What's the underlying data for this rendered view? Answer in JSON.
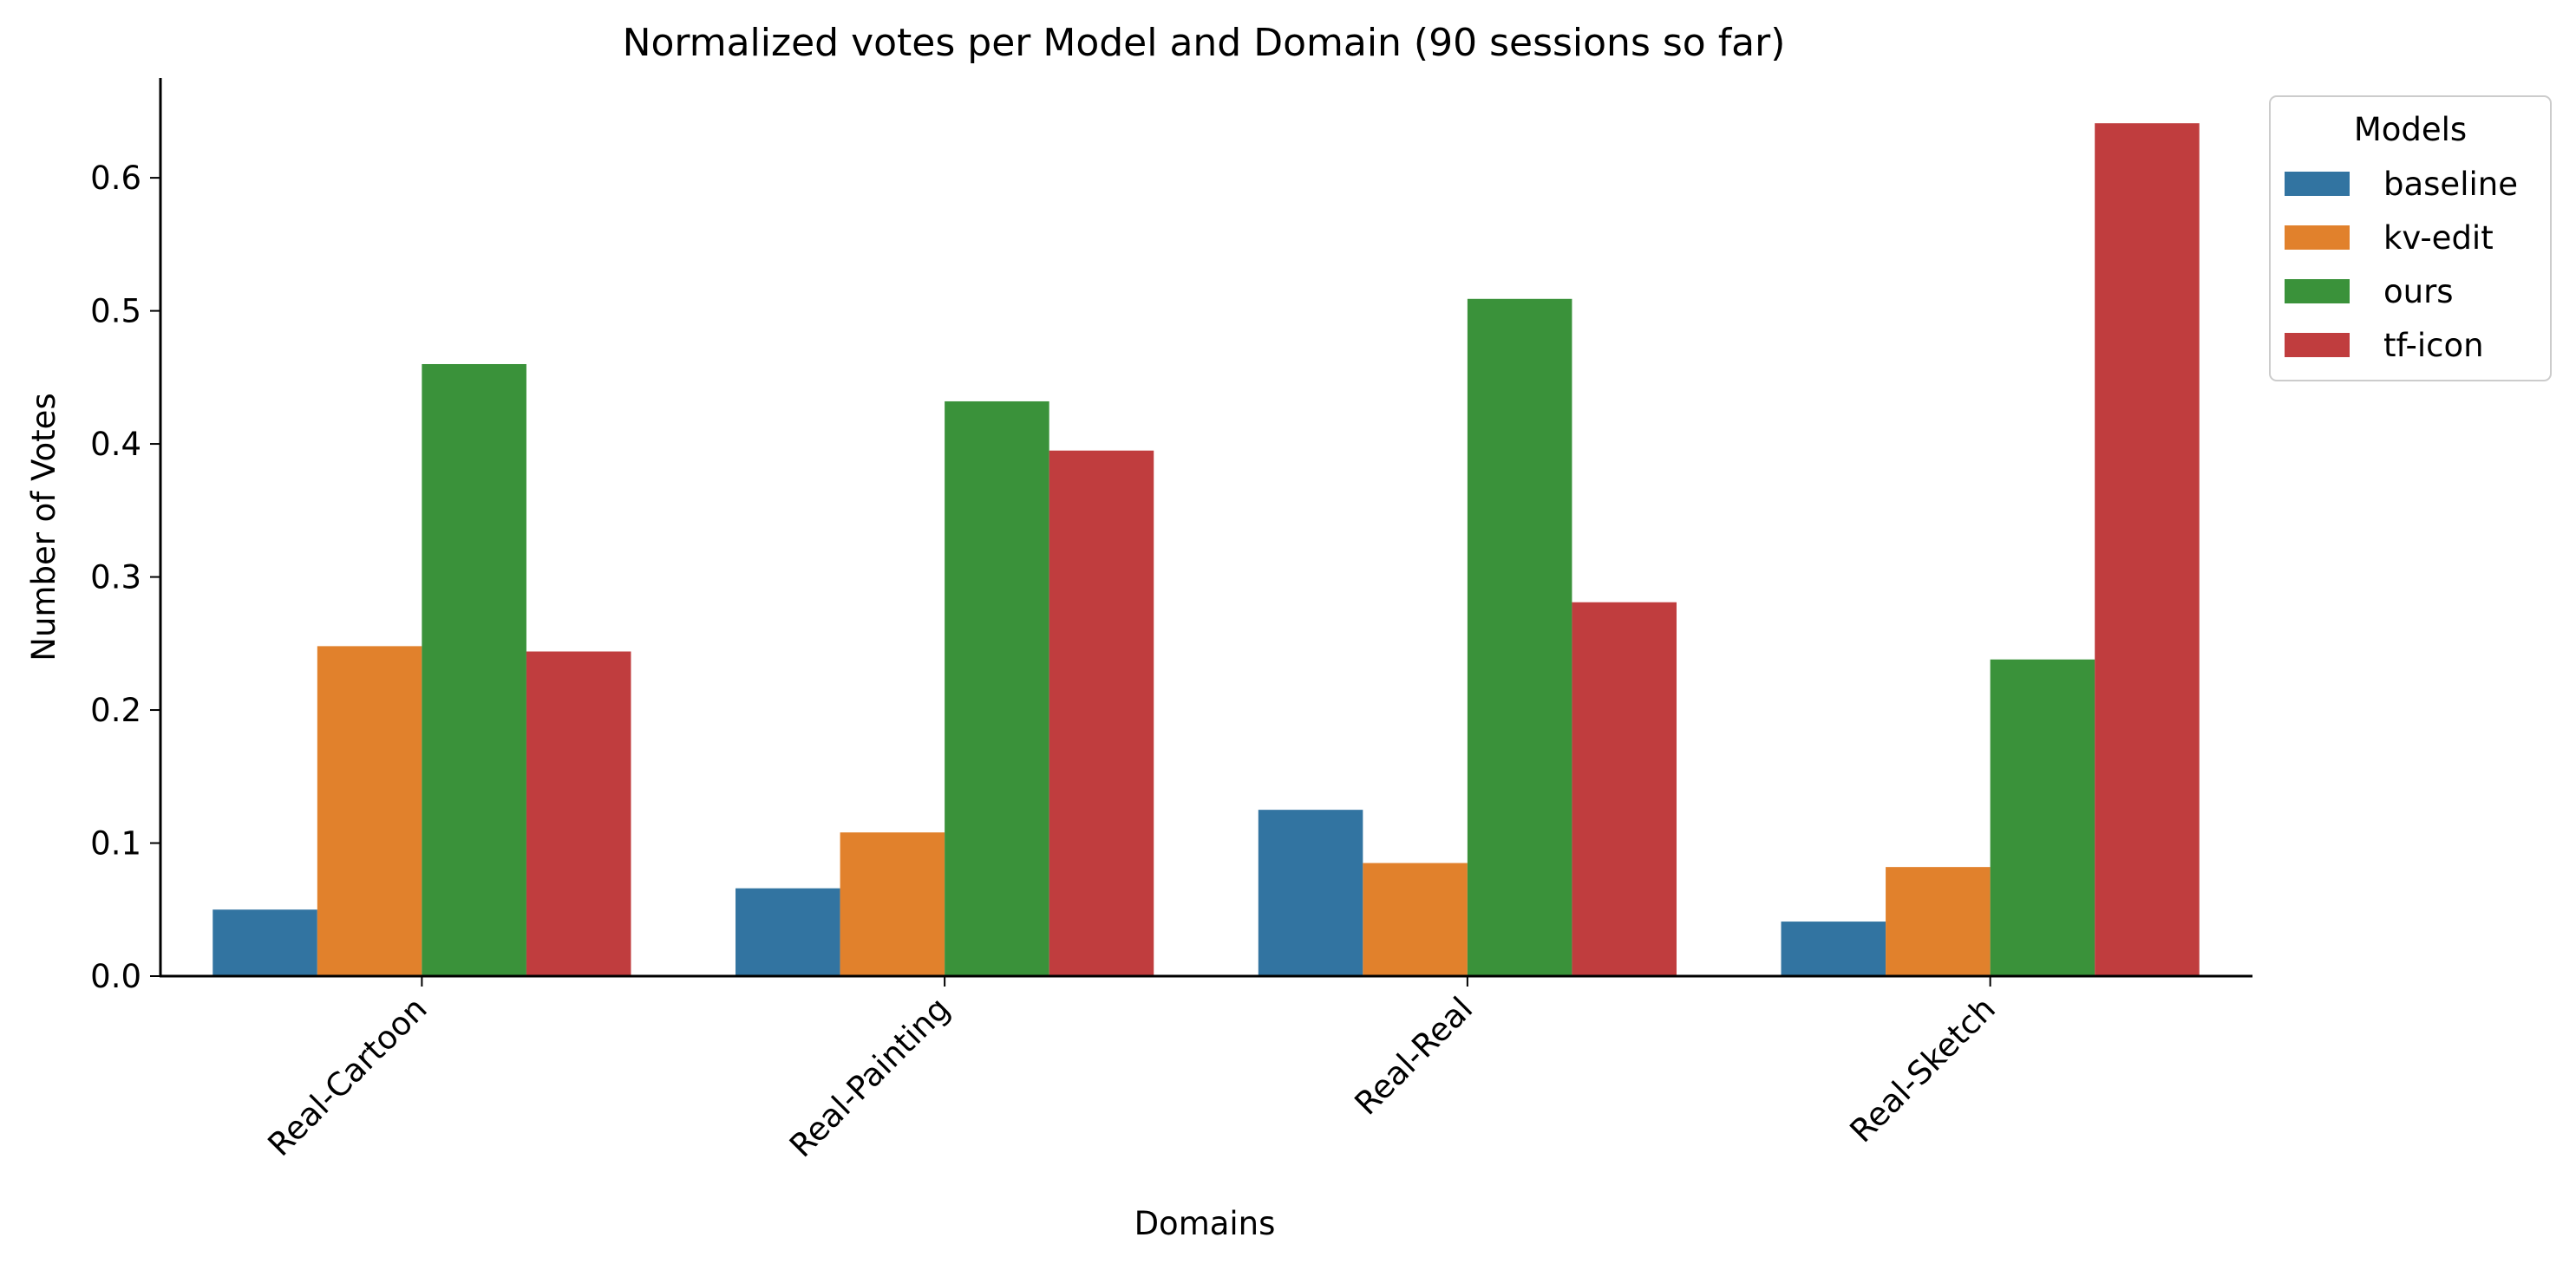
{
  "chart_data": {
    "type": "bar",
    "title": "Normalized votes per Model and Domain (90 sessions so far)",
    "xlabel": "Domains",
    "ylabel": "Number of Votes",
    "categories": [
      "Real-Cartoon",
      "Real-Painting",
      "Real-Real",
      "Real-Sketch"
    ],
    "series": [
      {
        "name": "baseline",
        "color": "#3274a1",
        "values": [
          0.05,
          0.066,
          0.125,
          0.041
        ]
      },
      {
        "name": "kv-edit",
        "color": "#e1812c",
        "values": [
          0.248,
          0.108,
          0.085,
          0.082
        ]
      },
      {
        "name": "ours",
        "color": "#3a923a",
        "values": [
          0.46,
          0.432,
          0.509,
          0.238
        ]
      },
      {
        "name": "tf-icon",
        "color": "#c03d3e",
        "values": [
          0.244,
          0.395,
          0.281,
          0.641
        ]
      }
    ],
    "ylim": [
      0,
      0.675
    ],
    "yticks": [
      "0.0",
      "0.1",
      "0.2",
      "0.3",
      "0.4",
      "0.5",
      "0.6"
    ],
    "grid": false,
    "legend": {
      "title": "Models",
      "placement": "outside-top-right"
    }
  }
}
